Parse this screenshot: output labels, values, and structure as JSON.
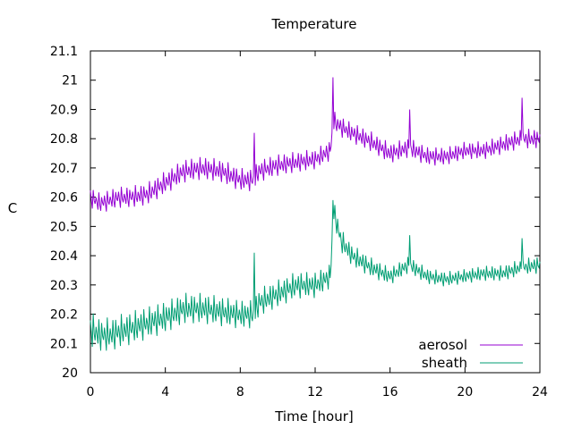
{
  "chart_data": {
    "type": "line",
    "title": "Temperature",
    "xlabel": "Time [hour]",
    "ylabel": "C",
    "xlim": [
      0,
      24
    ],
    "ylim": [
      20.0,
      21.1
    ],
    "xticks": [
      0,
      4,
      8,
      12,
      16,
      20,
      24
    ],
    "yticks": [
      20,
      20.1,
      20.2,
      20.3,
      20.4,
      20.5,
      20.6,
      20.7,
      20.8,
      20.9,
      21,
      21.1
    ],
    "grid": false,
    "legend": "bottom-right",
    "sample_interval_hours": 0.05,
    "series": [
      {
        "name": "aerosol",
        "color": "#9400d3",
        "baseline": {
          "x": [
            0,
            0.5,
            1,
            1.5,
            2,
            3,
            4,
            5,
            6,
            7,
            8,
            8.7,
            9,
            10,
            11,
            12,
            12.8,
            13,
            13.4,
            14,
            15,
            16,
            17,
            18,
            19,
            20,
            21,
            22,
            23,
            24
          ],
          "y": [
            20.6,
            20.58,
            20.59,
            20.6,
            20.6,
            20.61,
            20.65,
            20.69,
            20.7,
            20.69,
            20.66,
            20.66,
            20.69,
            20.71,
            20.72,
            20.73,
            20.76,
            20.86,
            20.84,
            20.82,
            20.79,
            20.75,
            20.77,
            20.74,
            20.74,
            20.76,
            20.76,
            20.78,
            20.8,
            20.8
          ]
        },
        "oscillation": {
          "amplitude_hours": [
            0,
            4,
            8,
            12,
            16,
            20,
            24
          ],
          "amplitude": [
            0.07,
            0.08,
            0.08,
            0.07,
            0.07,
            0.06,
            0.07
          ]
        },
        "spikes": [
          {
            "x": 12.95,
            "y": 21.01
          },
          {
            "x": 8.75,
            "y": 20.82
          },
          {
            "x": 17.05,
            "y": 20.9
          },
          {
            "x": 23.05,
            "y": 20.94
          }
        ]
      },
      {
        "name": "sheath",
        "color": "#009e73",
        "baseline": {
          "x": [
            0,
            0.5,
            1,
            1.5,
            2,
            3,
            4,
            5,
            6,
            7,
            8,
            8.7,
            9,
            10,
            11,
            12,
            12.8,
            13,
            13.4,
            14,
            15,
            16,
            17,
            18,
            19,
            20,
            21,
            22,
            23,
            24
          ],
          "y": [
            20.15,
            20.13,
            20.13,
            20.14,
            20.15,
            20.17,
            20.19,
            20.22,
            20.22,
            20.21,
            20.2,
            20.2,
            20.24,
            20.27,
            20.3,
            20.3,
            20.33,
            20.55,
            20.45,
            20.4,
            20.36,
            20.33,
            20.37,
            20.33,
            20.32,
            20.33,
            20.34,
            20.34,
            20.36,
            20.37
          ]
        },
        "oscillation": {
          "amplitude_hours": [
            0,
            4,
            8,
            12,
            16,
            20,
            24
          ],
          "amplitude": [
            0.12,
            0.11,
            0.1,
            0.09,
            0.06,
            0.05,
            0.06
          ]
        },
        "spikes": [
          {
            "x": 12.95,
            "y": 20.59
          },
          {
            "x": 8.75,
            "y": 20.41
          },
          {
            "x": 17.05,
            "y": 20.47
          },
          {
            "x": 23.05,
            "y": 20.46
          }
        ]
      }
    ]
  }
}
